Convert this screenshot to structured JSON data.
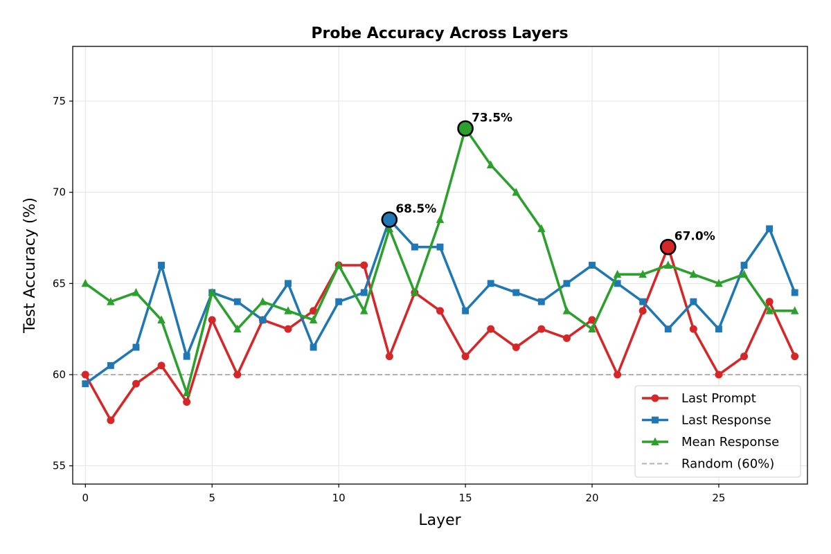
{
  "chart_data": {
    "type": "line",
    "title": "Probe Accuracy Across Layers",
    "xlabel": "Layer",
    "ylabel": "Test Accuracy (%)",
    "xlim": [
      -0.5,
      28.5
    ],
    "ylim": [
      54,
      78
    ],
    "xticks": [
      0,
      5,
      10,
      15,
      20,
      25
    ],
    "yticks": [
      55,
      60,
      65,
      70,
      75
    ],
    "grid": true,
    "legend_position": "lower-right",
    "x": [
      0,
      1,
      2,
      3,
      4,
      5,
      6,
      7,
      8,
      9,
      10,
      11,
      12,
      13,
      14,
      15,
      16,
      17,
      18,
      19,
      20,
      21,
      22,
      23,
      24,
      25,
      26,
      27,
      28
    ],
    "series": [
      {
        "name": "Last Prompt",
        "color": "#d62728",
        "marker": "circle",
        "values": [
          60.0,
          57.5,
          59.5,
          60.5,
          58.5,
          63.0,
          60.0,
          63.0,
          62.5,
          63.5,
          66.0,
          66.0,
          61.0,
          64.5,
          63.5,
          61.0,
          62.5,
          61.5,
          62.5,
          62.0,
          63.0,
          60.0,
          63.5,
          67.0,
          62.5,
          60.0,
          61.0,
          64.0,
          61.0
        ]
      },
      {
        "name": "Last Response",
        "color": "#1f77b4",
        "marker": "square",
        "values": [
          59.5,
          60.5,
          61.5,
          66.0,
          61.0,
          64.5,
          64.0,
          63.0,
          65.0,
          61.5,
          64.0,
          64.5,
          68.5,
          67.0,
          67.0,
          63.5,
          65.0,
          64.5,
          64.0,
          65.0,
          66.0,
          65.0,
          64.0,
          62.5,
          64.0,
          62.5,
          66.0,
          68.0,
          64.5
        ]
      },
      {
        "name": "Mean Response",
        "color": "#2ca02c",
        "marker": "triangle",
        "values": [
          65.0,
          64.0,
          64.5,
          63.0,
          59.0,
          64.5,
          62.5,
          64.0,
          63.5,
          63.0,
          66.0,
          63.5,
          68.0,
          64.5,
          68.5,
          73.5,
          71.5,
          70.0,
          68.0,
          63.5,
          62.5,
          65.5,
          65.5,
          66.0,
          65.5,
          65.0,
          65.5,
          63.5,
          63.5
        ]
      }
    ],
    "reference_line": {
      "name": "Random (60%)",
      "value": 60,
      "color": "#b0b0b0"
    },
    "annotations": [
      {
        "x": 12,
        "y": 68.5,
        "text": "68.5%",
        "color": "#1f77b4"
      },
      {
        "x": 15,
        "y": 73.5,
        "text": "73.5%",
        "color": "#2ca02c"
      },
      {
        "x": 23,
        "y": 67.0,
        "text": "67.0%",
        "color": "#d62728"
      }
    ]
  }
}
